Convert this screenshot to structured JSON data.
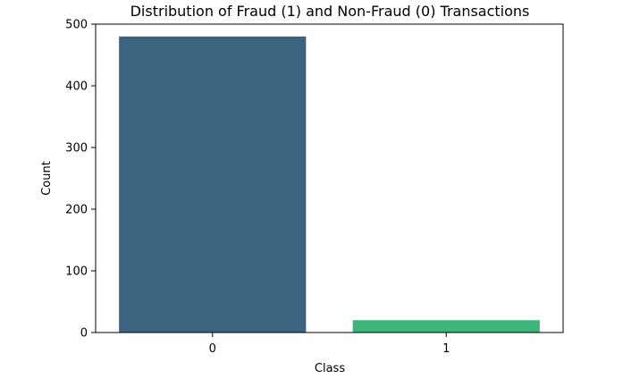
{
  "chart_data": {
    "type": "bar",
    "title": "Distribution of Fraud (1) and Non-Fraud (0) Transactions",
    "xlabel": "Class",
    "ylabel": "Count",
    "categories": [
      "0",
      "1"
    ],
    "values": [
      480,
      20
    ],
    "ylim": [
      0,
      500
    ],
    "yticks": [
      0,
      100,
      200,
      300,
      400,
      500
    ],
    "colors": [
      "#3b6481",
      "#3db57a"
    ],
    "grid": false,
    "legend": "none"
  }
}
